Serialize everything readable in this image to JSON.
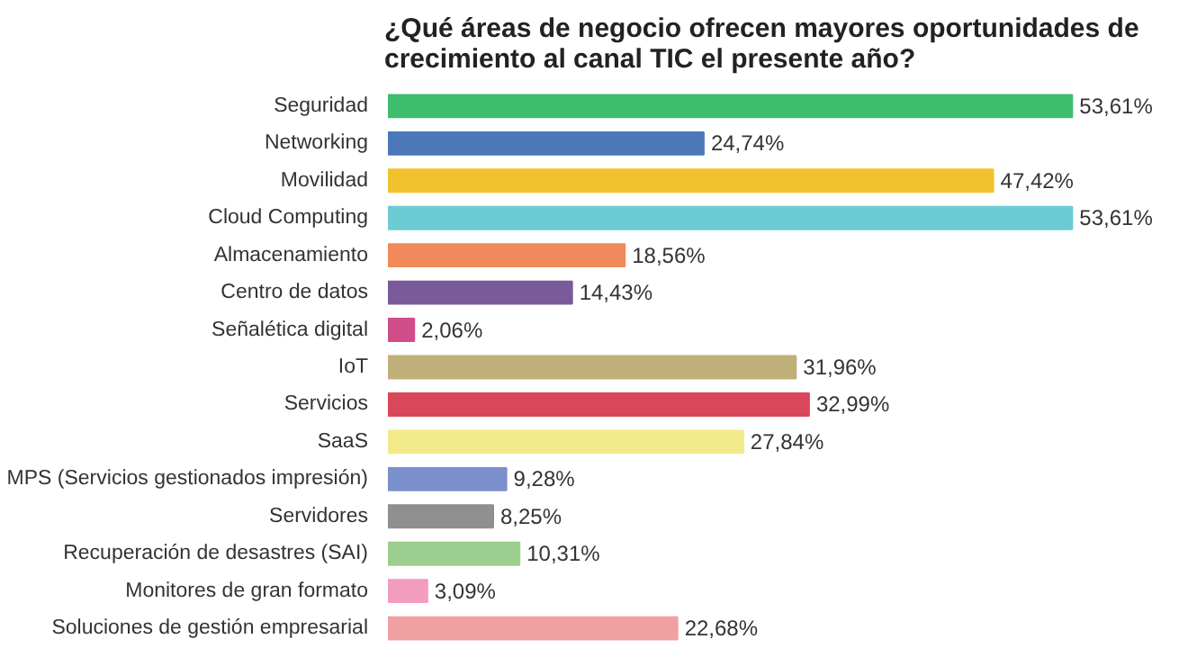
{
  "chart_data": {
    "type": "bar",
    "orientation": "horizontal",
    "title": "¿Qué áreas de negocio ofrecen mayores oportunidades de crecimiento al canal TIC el presente año?",
    "categories": [
      "Seguridad",
      "Networking",
      "Movilidad",
      "Cloud Computing",
      "Almacenamiento",
      "Centro de datos",
      "Señalética digital",
      "IoT",
      "Servicios",
      "SaaS",
      "MPS (Servicios gestionados impresión)",
      "Servidores",
      "Recuperación de desastres (SAI)",
      "Monitores de gran formato",
      "Soluciones de gestión empresarial"
    ],
    "values": [
      53.61,
      24.74,
      47.42,
      53.61,
      18.56,
      14.43,
      2.06,
      31.96,
      32.99,
      27.84,
      9.28,
      8.25,
      10.31,
      3.09,
      22.68
    ],
    "value_labels": [
      "53,61%",
      "24,74%",
      "47,42%",
      "53,61%",
      "18,56%",
      "14,43%",
      "2,06%",
      "31,96%",
      "32,99%",
      "27,84%",
      "9,28%",
      "8,25%",
      "10,31%",
      "3,09%",
      "22,68%"
    ],
    "colors": [
      "#3dbd6e",
      "#4a78b8",
      "#f2c12e",
      "#6ccbd4",
      "#f08a5a",
      "#7a5a9a",
      "#d14d8a",
      "#bfb07a",
      "#d9475a",
      "#f2e98a",
      "#7b8fcc",
      "#8f8f8f",
      "#9ccf8f",
      "#f29cc0",
      "#f0a0a0"
    ],
    "grid": false
  }
}
